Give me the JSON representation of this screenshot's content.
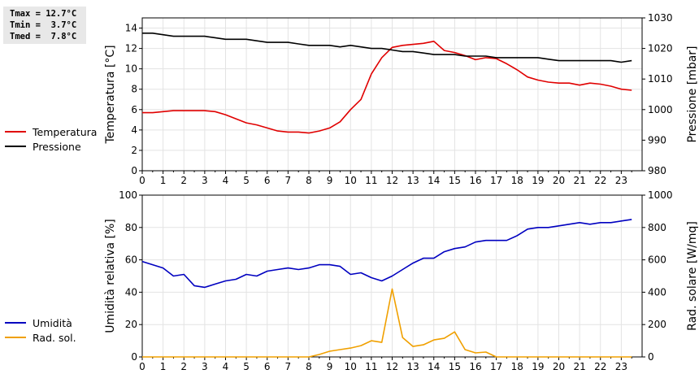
{
  "stats": {
    "tmax": "Tmax = 12.7°C",
    "tmin": "Tmin =  3.7°C",
    "tmed": "Tmed =  7.8°C"
  },
  "colors": {
    "temperatura": "#e00000",
    "pressione": "#000000",
    "umidita": "#0000c0",
    "rad_sol": "#f0a000"
  },
  "chart_data": [
    {
      "type": "line",
      "x_ticks": [
        "0",
        "1",
        "2",
        "3",
        "4",
        "5",
        "6",
        "7",
        "8",
        "9",
        "10",
        "11",
        "12",
        "13",
        "14",
        "15",
        "16",
        "17",
        "18",
        "19",
        "20",
        "21",
        "22",
        "23"
      ],
      "ylabel_left": "Temperatura [°C]",
      "ylabel_right": "Pressione [mbar]",
      "ylim_left": [
        0,
        15
      ],
      "yticks_left": [
        "0",
        "2",
        "4",
        "6",
        "8",
        "10",
        "12",
        "14"
      ],
      "ylim_right": [
        980,
        1030
      ],
      "yticks_right": [
        "980",
        "990",
        "1000",
        "1010",
        "1020",
        "1030"
      ],
      "xlim": [
        0,
        24
      ],
      "grid": true,
      "legend": [
        "Temperatura",
        "Pressione"
      ],
      "series": [
        {
          "name": "Temperatura",
          "axis": "left",
          "x": [
            0,
            0.5,
            1,
            1.5,
            2,
            2.5,
            3,
            3.5,
            4,
            4.5,
            5,
            5.5,
            6,
            6.5,
            7,
            7.5,
            8,
            8.5,
            9,
            9.5,
            10,
            10.5,
            11,
            11.5,
            12,
            12.5,
            13,
            13.5,
            14,
            14.5,
            15,
            15.5,
            16,
            16.5,
            17,
            17.5,
            18,
            18.5,
            19,
            19.5,
            20,
            20.5,
            21,
            21.5,
            22,
            22.5,
            23,
            23.5
          ],
          "y": [
            5.7,
            5.7,
            5.8,
            5.9,
            5.9,
            5.9,
            5.9,
            5.8,
            5.5,
            5.1,
            4.7,
            4.5,
            4.2,
            3.9,
            3.8,
            3.8,
            3.7,
            3.9,
            4.2,
            4.8,
            6.0,
            7.0,
            9.5,
            11.1,
            12.1,
            12.3,
            12.4,
            12.5,
            12.7,
            11.8,
            11.6,
            11.3,
            10.9,
            11.1,
            11.0,
            10.5,
            9.9,
            9.2,
            8.9,
            8.7,
            8.6,
            8.6,
            8.4,
            8.6,
            8.5,
            8.3,
            8.0,
            7.9
          ]
        },
        {
          "name": "Pressione",
          "axis": "right",
          "x": [
            0,
            0.5,
            1,
            1.5,
            2,
            2.5,
            3,
            3.5,
            4,
            4.5,
            5,
            5.5,
            6,
            6.5,
            7,
            7.5,
            8,
            8.5,
            9,
            9.5,
            10,
            10.5,
            11,
            11.5,
            12,
            12.5,
            13,
            13.5,
            14,
            14.5,
            15,
            15.5,
            16,
            16.5,
            17,
            17.5,
            18,
            18.5,
            19,
            19.5,
            20,
            20.5,
            21,
            21.5,
            22,
            22.5,
            23,
            23.5
          ],
          "y": [
            1025,
            1025,
            1024.5,
            1024,
            1024,
            1024,
            1024,
            1023.5,
            1023,
            1023,
            1023,
            1022.5,
            1022,
            1022,
            1022,
            1021.5,
            1021,
            1021,
            1021,
            1020.5,
            1021,
            1020.5,
            1020,
            1020,
            1019.5,
            1019,
            1019,
            1018.5,
            1018,
            1018,
            1018,
            1017.5,
            1017.5,
            1017.5,
            1017,
            1017,
            1017,
            1017,
            1017,
            1016.5,
            1016,
            1016,
            1016,
            1016,
            1016,
            1016,
            1015.5,
            1016
          ]
        }
      ]
    },
    {
      "type": "line",
      "x_ticks": [
        "0",
        "1",
        "2",
        "3",
        "4",
        "5",
        "6",
        "7",
        "8",
        "9",
        "10",
        "11",
        "12",
        "13",
        "14",
        "15",
        "16",
        "17",
        "18",
        "19",
        "20",
        "21",
        "22",
        "23"
      ],
      "ylabel_left": "Umidità relativa [%]",
      "ylabel_right": "Rad. solare [W/mq]",
      "ylim_left": [
        0,
        100
      ],
      "yticks_left": [
        "0",
        "20",
        "40",
        "60",
        "80",
        "100"
      ],
      "ylim_right": [
        0,
        1000
      ],
      "yticks_right": [
        "0",
        "200",
        "400",
        "600",
        "800",
        "1000"
      ],
      "xlim": [
        0,
        24
      ],
      "grid": true,
      "legend": [
        "Umidità",
        "Rad. sol."
      ],
      "series": [
        {
          "name": "Umidità",
          "axis": "left",
          "x": [
            0,
            0.5,
            1,
            1.5,
            2,
            2.5,
            3,
            3.5,
            4,
            4.5,
            5,
            5.5,
            6,
            6.5,
            7,
            7.5,
            8,
            8.5,
            9,
            9.5,
            10,
            10.5,
            11,
            11.5,
            12,
            12.5,
            13,
            13.5,
            14,
            14.5,
            15,
            15.5,
            16,
            16.5,
            17,
            17.5,
            18,
            18.5,
            19,
            19.5,
            20,
            20.5,
            21,
            21.5,
            22,
            22.5,
            23,
            23.5
          ],
          "y": [
            59,
            57,
            55,
            50,
            51,
            44,
            43,
            45,
            47,
            48,
            51,
            50,
            53,
            54,
            55,
            54,
            55,
            57,
            57,
            56,
            51,
            52,
            49,
            47,
            50,
            54,
            58,
            61,
            61,
            65,
            67,
            68,
            71,
            72,
            72,
            72,
            75,
            79,
            80,
            80,
            81,
            82,
            83,
            82,
            83,
            83,
            84,
            85
          ]
        },
        {
          "name": "Rad. sol.",
          "axis": "right",
          "x": [
            0,
            0.5,
            1,
            1.5,
            2,
            2.5,
            3,
            3.5,
            4,
            4.5,
            5,
            5.5,
            6,
            6.5,
            7,
            7.5,
            8,
            8.5,
            9,
            9.5,
            10,
            10.5,
            11,
            11.5,
            12,
            12.5,
            13,
            13.5,
            14,
            14.5,
            15,
            15.5,
            16,
            16.5,
            17,
            17.5,
            18,
            18.5,
            19,
            19.5,
            20,
            20.5,
            21,
            21.5,
            22,
            22.5,
            23,
            23.5
          ],
          "y": [
            0,
            0,
            0,
            0,
            0,
            0,
            0,
            0,
            0,
            0,
            0,
            0,
            0,
            0,
            0,
            0,
            0,
            15,
            35,
            45,
            55,
            70,
            100,
            90,
            420,
            120,
            65,
            75,
            105,
            115,
            155,
            45,
            25,
            30,
            0,
            0,
            0,
            0,
            0,
            0,
            0,
            0,
            0,
            0,
            0,
            0,
            0,
            0
          ]
        }
      ]
    }
  ]
}
